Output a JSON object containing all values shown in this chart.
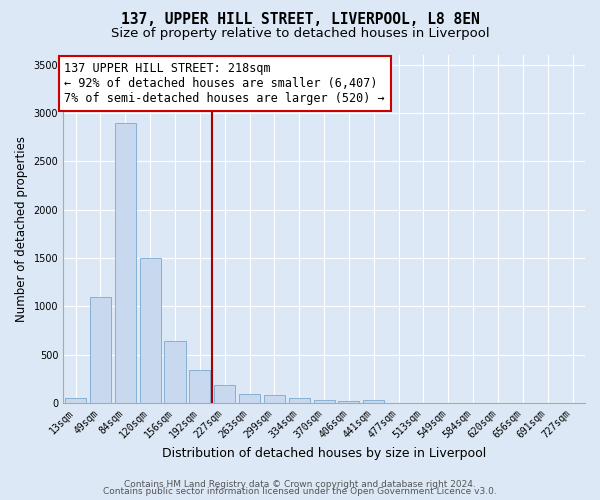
{
  "title": "137, UPPER HILL STREET, LIVERPOOL, L8 8EN",
  "subtitle": "Size of property relative to detached houses in Liverpool",
  "xlabel": "Distribution of detached houses by size in Liverpool",
  "ylabel": "Number of detached properties",
  "categories": [
    "13sqm",
    "49sqm",
    "84sqm",
    "120sqm",
    "156sqm",
    "192sqm",
    "227sqm",
    "263sqm",
    "299sqm",
    "334sqm",
    "370sqm",
    "406sqm",
    "441sqm",
    "477sqm",
    "513sqm",
    "549sqm",
    "584sqm",
    "620sqm",
    "656sqm",
    "691sqm",
    "727sqm"
  ],
  "values": [
    50,
    1100,
    2900,
    1500,
    640,
    340,
    185,
    100,
    85,
    55,
    35,
    20,
    35,
    5,
    0,
    0,
    0,
    0,
    0,
    0,
    0
  ],
  "bar_color": "#c8d8ee",
  "bar_edge_color": "#7aaacf",
  "vline_color": "#aa0000",
  "annotation_line1": "137 UPPER HILL STREET: 218sqm",
  "annotation_line2": "← 92% of detached houses are smaller (6,407)",
  "annotation_line3": "7% of semi-detached houses are larger (520) →",
  "annotation_box_edge_color": "#cc0000",
  "ylim": [
    0,
    3600
  ],
  "yticks": [
    0,
    500,
    1000,
    1500,
    2000,
    2500,
    3000,
    3500
  ],
  "bg_color": "#dce8f5",
  "grid_color": "white",
  "footer_line1": "Contains HM Land Registry data © Crown copyright and database right 2024.",
  "footer_line2": "Contains public sector information licensed under the Open Government Licence v3.0.",
  "title_fontsize": 10.5,
  "subtitle_fontsize": 9.5,
  "tick_fontsize": 7,
  "ylabel_fontsize": 8.5,
  "xlabel_fontsize": 9,
  "annotation_fontsize": 8.5,
  "footer_fontsize": 6.5,
  "vline_xindex": 5.5
}
